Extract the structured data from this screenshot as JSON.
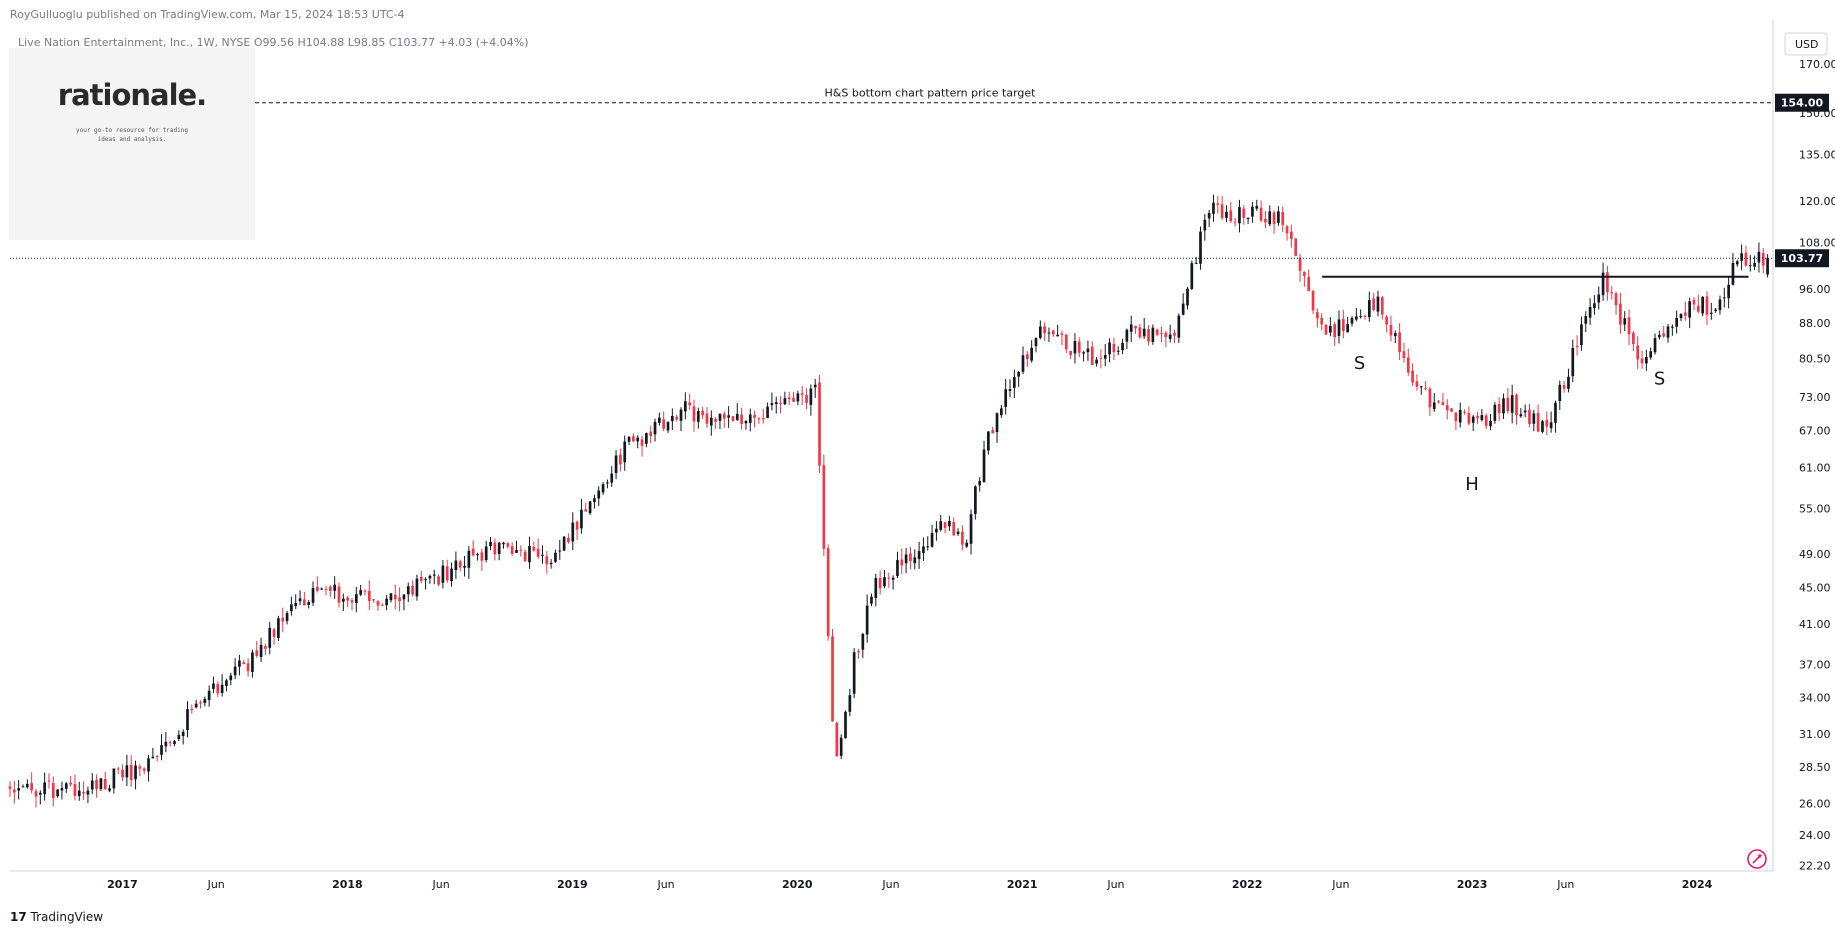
{
  "header": {
    "publisher_line": "RoyGulluoglu published on TradingView.com, Mar 15, 2024 18:53 UTC-4",
    "symbol_line": "Live Nation Entertainment, Inc., 1W, NYSE  O99.56  H104.88  L98.85  C103.77  +4.03 (+4.04%)"
  },
  "logo": {
    "name": "rationale.",
    "tagline": "your go-to resource for trading ideas and analysis."
  },
  "footer": {
    "brand": "TradingView"
  },
  "colors": {
    "up": "#131722",
    "down": "#f23645",
    "grid": "#e0e3eb",
    "text": "#131722"
  },
  "chart_data": {
    "type": "candlestick",
    "title": "Live Nation Entertainment, Inc., 1W, NYSE",
    "currency": "USD",
    "y_scale": "log",
    "ylim": [
      21.9,
      190
    ],
    "y_ticks": [
      "170.00",
      "150.00",
      "135.00",
      "120.00",
      "108.00",
      "96.00",
      "88.00",
      "80.50",
      "73.00",
      "67.00",
      "61.00",
      "55.00",
      "49.00",
      "45.00",
      "41.00",
      "37.00",
      "34.00",
      "31.00",
      "28.50",
      "26.00",
      "24.00",
      "22.20"
    ],
    "x_ticks": [
      "2017",
      "Jun",
      "2018",
      "Jun",
      "2019",
      "Jun",
      "2020",
      "Jun",
      "2021",
      "Jun",
      "2022",
      "Jun",
      "2023",
      "Jun",
      "2024"
    ],
    "x_range": [
      "2016-07",
      "2024-05"
    ],
    "ohlc_last": {
      "open": 99.56,
      "high": 104.88,
      "low": 98.85,
      "close": 103.77,
      "change": 4.03,
      "change_pct": 4.04
    },
    "last_price_label": "103.77",
    "target": {
      "price": 154.0,
      "price_label": "154.00",
      "text": "H&S bottom chart pattern price target"
    },
    "neckline": {
      "price": 99.0,
      "from": "2022-05",
      "to": "2024-03"
    },
    "annotations": [
      {
        "text": "S",
        "date": "2022-07",
        "price": 79.5
      },
      {
        "text": "H",
        "date": "2023-01",
        "price": 58.5
      },
      {
        "text": "S",
        "date": "2023-11",
        "price": 76.5
      }
    ],
    "price_path": [
      [
        "2016-07",
        27.0
      ],
      [
        "2016-10",
        26.8
      ],
      [
        "2016-12",
        27.5
      ],
      [
        "2017-02",
        28.5
      ],
      [
        "2017-04",
        31.5
      ],
      [
        "2017-06",
        35.0
      ],
      [
        "2017-08",
        37.5
      ],
      [
        "2017-10",
        43.5
      ],
      [
        "2018-01",
        44.5
      ],
      [
        "2018-03",
        43.0
      ],
      [
        "2018-06",
        46.5
      ],
      [
        "2018-09",
        50.0
      ],
      [
        "2018-12",
        48.5
      ],
      [
        "2019-02",
        56.5
      ],
      [
        "2019-04",
        64.5
      ],
      [
        "2019-07",
        70.5
      ],
      [
        "2019-10",
        68.5
      ],
      [
        "2020-01",
        72.0
      ],
      [
        "2020-02",
        74.0
      ],
      [
        "2020-03",
        28.0
      ],
      [
        "2020-04",
        37.0
      ],
      [
        "2020-05",
        45.0
      ],
      [
        "2020-07",
        48.5
      ],
      [
        "2020-09",
        53.0
      ],
      [
        "2020-10",
        51.0
      ],
      [
        "2020-11",
        64.0
      ],
      [
        "2020-12",
        73.0
      ],
      [
        "2021-02",
        86.0
      ],
      [
        "2021-05",
        80.5
      ],
      [
        "2021-07",
        86.5
      ],
      [
        "2021-09",
        85.0
      ],
      [
        "2021-10",
        100.0
      ],
      [
        "2021-11",
        117.0
      ],
      [
        "2022-01",
        116.0
      ],
      [
        "2022-03",
        115.0
      ],
      [
        "2022-05",
        86.0
      ],
      [
        "2022-07",
        88.0
      ],
      [
        "2022-08",
        94.0
      ],
      [
        "2022-10",
        74.0
      ],
      [
        "2023-01",
        68.0
      ],
      [
        "2023-03",
        72.0
      ],
      [
        "2023-05",
        67.0
      ],
      [
        "2023-07",
        88.0
      ],
      [
        "2023-08",
        99.0
      ],
      [
        "2023-10",
        80.0
      ],
      [
        "2023-11",
        85.0
      ],
      [
        "2024-01",
        93.0
      ],
      [
        "2024-02",
        90.0
      ],
      [
        "2024-03",
        103.77
      ]
    ]
  }
}
